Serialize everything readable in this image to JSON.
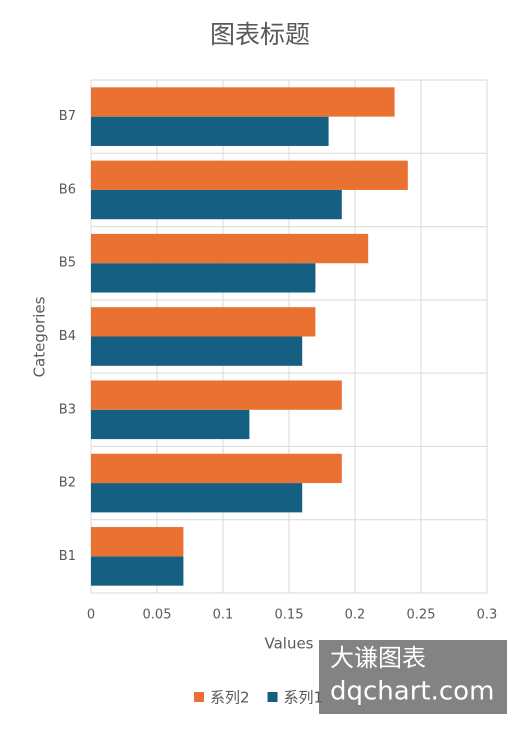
{
  "chart_data": {
    "type": "barh",
    "title": "图表标题",
    "x_label": "Values",
    "y_label": "Categories",
    "categories": [
      "B1",
      "B2",
      "B3",
      "B4",
      "B5",
      "B6",
      "B7"
    ],
    "series": [
      {
        "name": "系列1",
        "color": "#156082",
        "values": [
          0.07,
          0.16,
          0.12,
          0.16,
          0.17,
          0.19,
          0.18
        ]
      },
      {
        "name": "系列2",
        "color": "#e97132",
        "values": [
          0.07,
          0.19,
          0.19,
          0.17,
          0.21,
          0.24,
          0.23
        ]
      }
    ],
    "xlim": [
      0,
      0.3
    ],
    "xticks": [
      0,
      0.05,
      0.1,
      0.15,
      0.2,
      0.25,
      0.3
    ],
    "grid": true,
    "legend": "bottom",
    "watermark": [
      "大谦图表",
      "dqchart.com"
    ]
  }
}
